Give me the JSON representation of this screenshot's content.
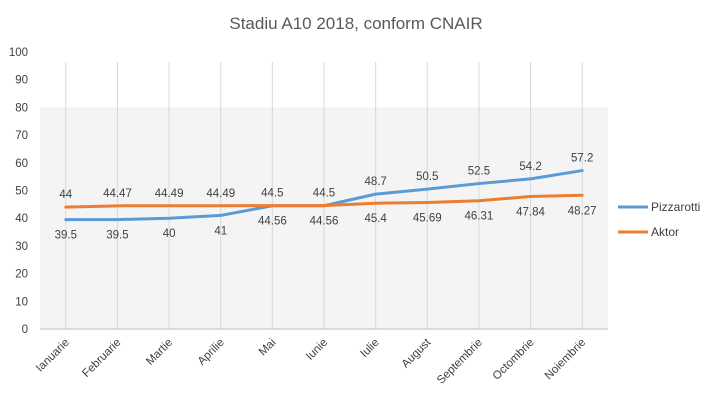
{
  "chart_data": {
    "type": "line",
    "title": "Stadiu A10 2018, conform CNAIR",
    "categories": [
      "Ianuarie",
      "Februarie",
      "Martie",
      "Aprilie",
      "Mai",
      "Iunie",
      "Iulie",
      "August",
      "Septembrie",
      "Octombrie",
      "Noiembrie"
    ],
    "series": [
      {
        "name": "Pizzarotti",
        "color": "#5B9BD5",
        "values": [
          39.5,
          39.5,
          40,
          41,
          44.5,
          44.5,
          48.7,
          50.5,
          52.5,
          54.2,
          57.2
        ],
        "labels": [
          "39.5",
          "39.5",
          "40",
          "41",
          "44.5",
          "44.5",
          "48.7",
          "50.5",
          "52.5",
          "54.2",
          "57.2"
        ]
      },
      {
        "name": "Aktor",
        "color": "#ED7D31",
        "values": [
          44,
          44.47,
          44.49,
          44.49,
          44.56,
          44.56,
          45.4,
          45.69,
          46.31,
          47.84,
          48.27
        ],
        "labels": [
          "44",
          "44.47",
          "44.49",
          "44.49",
          "44.56",
          "44.56",
          "45.4",
          "45.69",
          "46.31",
          "47.84",
          "48.27"
        ]
      }
    ],
    "ylim": [
      0,
      100
    ],
    "yticks": [
      "0",
      "10",
      "20",
      "30",
      "40",
      "50",
      "60",
      "70",
      "80",
      "90",
      "100"
    ],
    "xlabel": "",
    "ylabel": "",
    "grid": "vertical",
    "legend_position": "right"
  }
}
